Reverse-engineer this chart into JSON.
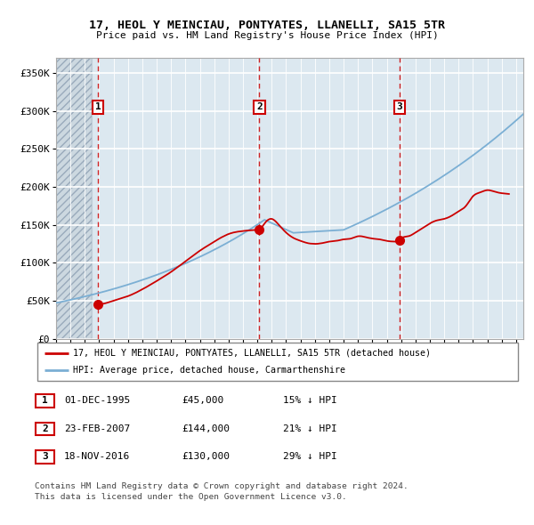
{
  "title": "17, HEOL Y MEINCIAU, PONTYATES, LLANELLI, SA15 5TR",
  "subtitle": "Price paid vs. HM Land Registry's House Price Index (HPI)",
  "xlim_start": 1993.0,
  "xlim_end": 2025.5,
  "ylim_min": 0,
  "ylim_max": 370000,
  "yticks": [
    0,
    50000,
    100000,
    150000,
    200000,
    250000,
    300000,
    350000
  ],
  "ytick_labels": [
    "£0",
    "£50K",
    "£100K",
    "£150K",
    "£200K",
    "£250K",
    "£300K",
    "£350K"
  ],
  "sale_dates": [
    1995.92,
    2007.14,
    2016.89
  ],
  "sale_prices": [
    45000,
    144000,
    130000
  ],
  "sale_labels": [
    "1",
    "2",
    "3"
  ],
  "legend_entries": [
    "17, HEOL Y MEINCIAU, PONTYATES, LLANELLI, SA15 5TR (detached house)",
    "HPI: Average price, detached house, Carmarthenshire"
  ],
  "table_rows": [
    [
      "1",
      "01-DEC-1995",
      "£45,000",
      "15% ↓ HPI"
    ],
    [
      "2",
      "23-FEB-2007",
      "£144,000",
      "21% ↓ HPI"
    ],
    [
      "3",
      "18-NOV-2016",
      "£130,000",
      "29% ↓ HPI"
    ]
  ],
  "footer": "Contains HM Land Registry data © Crown copyright and database right 2024.\nThis data is licensed under the Open Government Licence v3.0.",
  "line_color_price": "#cc0000",
  "line_color_hpi": "#7bafd4",
  "bg_plot": "#dce8f0",
  "bg_hatch": "#ccd8e0"
}
